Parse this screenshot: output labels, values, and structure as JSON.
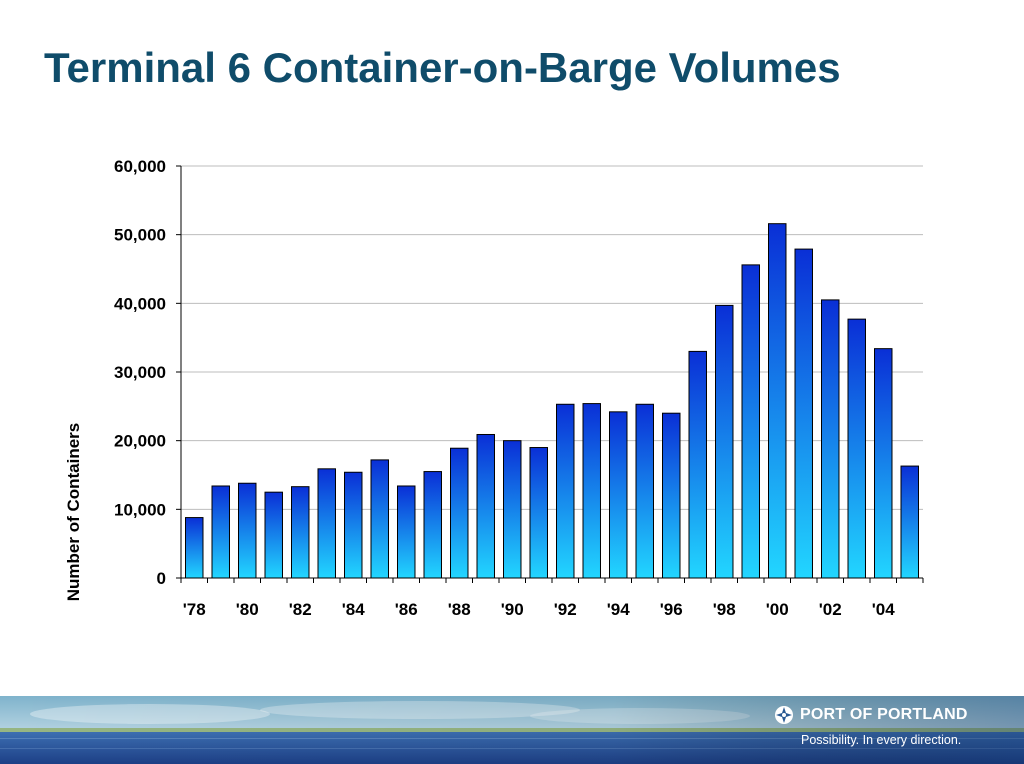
{
  "slide": {
    "title": "Terminal 6 Container-on-Barge Volumes"
  },
  "chart_data": {
    "type": "bar",
    "title": "",
    "xlabel": "",
    "ylabel": "Number of Containers",
    "ylim": [
      0,
      60000
    ],
    "yticks": [
      0,
      10000,
      20000,
      30000,
      40000,
      50000,
      60000
    ],
    "ytick_labels": [
      "0",
      "10,000",
      "20,000",
      "30,000",
      "40,000",
      "50,000",
      "60,000"
    ],
    "categories": [
      "1978",
      "1979",
      "1980",
      "1981",
      "1982",
      "1983",
      "1984",
      "1985",
      "1986",
      "1987",
      "1988",
      "1989",
      "1990",
      "1991",
      "1992",
      "1993",
      "1994",
      "1995",
      "1996",
      "1997",
      "1998",
      "1999",
      "2000",
      "2001",
      "2002",
      "2003",
      "2004",
      "2005"
    ],
    "xtick_labels": [
      "'78",
      "",
      "'80",
      "",
      "'82",
      "",
      "'84",
      "",
      "'86",
      "",
      "'88",
      "",
      "'90",
      "",
      "'92",
      "",
      "'94",
      "",
      "'96",
      "",
      "'98",
      "",
      "'00",
      "",
      "'02",
      "",
      "'04",
      ""
    ],
    "values": [
      8800,
      13400,
      13800,
      12500,
      13300,
      15900,
      15400,
      17200,
      13400,
      15500,
      18900,
      20900,
      20000,
      19000,
      25300,
      25400,
      24200,
      25300,
      24000,
      33000,
      39700,
      45600,
      51600,
      47900,
      40500,
      37700,
      33400,
      16300
    ],
    "grid": true,
    "legend": "none",
    "colors": {
      "bar_top": "#0a2fd6",
      "bar_bottom": "#22d6ff",
      "bar_outline": "#000000",
      "gridline": "#bdbdbd"
    }
  },
  "footer": {
    "brand_name": "PORT OF PORTLAND",
    "tagline": "Possibility. In every direction.",
    "logo_icon": "port-of-portland-compass-icon"
  },
  "colors": {
    "title": "#0f4c6a"
  }
}
